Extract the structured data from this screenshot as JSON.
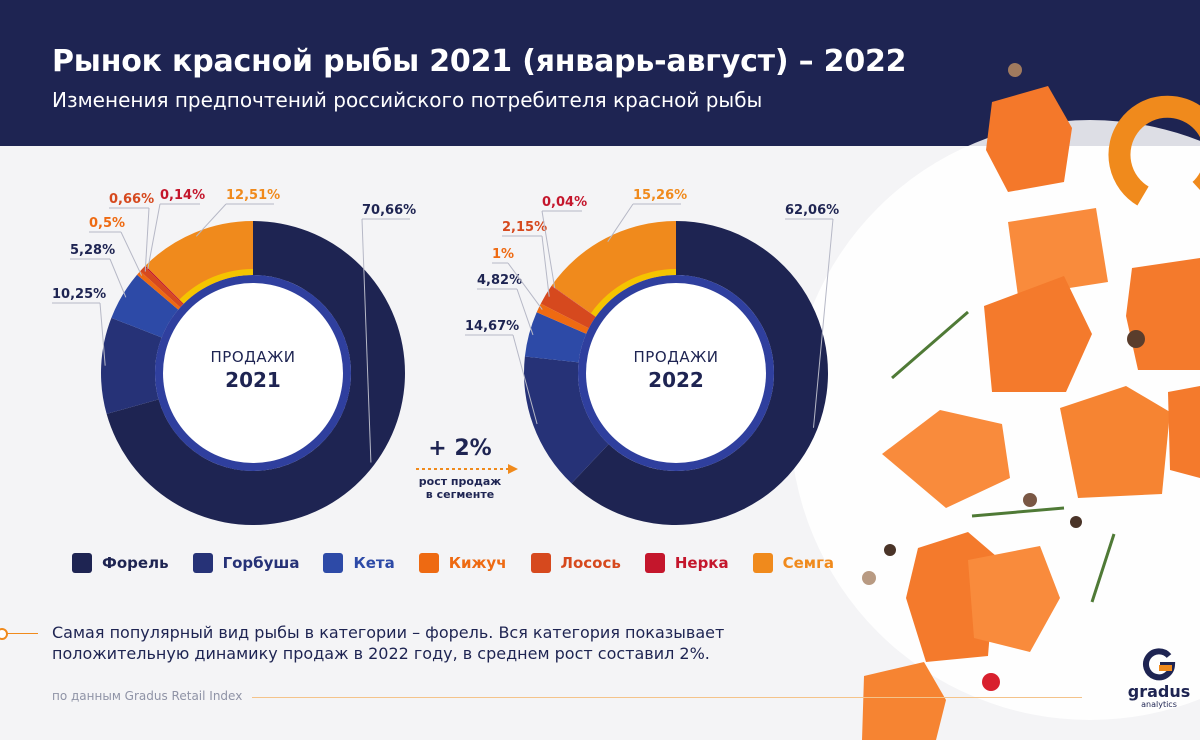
{
  "header": {
    "title": "Рынок красной рыбы 2021 (январь-август) – 2022",
    "subtitle": "Изменения предпочтений российского потребителя красной рыбы"
  },
  "colors": {
    "header_bg": "#1e2452",
    "accent": "#f08a1c"
  },
  "chart_data": [
    {
      "type": "pie",
      "title": "ПРОДАЖИ 2021",
      "center_label": "ПРОДАЖИ",
      "center_year": "2021",
      "categories": [
        "Форель",
        "Горбуша",
        "Кета",
        "Кижуч",
        "Лосось",
        "Нерка",
        "Семга"
      ],
      "values": [
        70.66,
        10.25,
        5.28,
        0.5,
        0.66,
        0.14,
        12.51
      ],
      "labels": [
        "70,66%",
        "10,25%",
        "5,28%",
        "0,5%",
        "0,66%",
        "0,14%",
        "12,51%"
      ]
    },
    {
      "type": "pie",
      "title": "ПРОДАЖИ 2022",
      "center_label": "ПРОДАЖИ",
      "center_year": "2022",
      "categories": [
        "Форель",
        "Горбуша",
        "Кета",
        "Кижуч",
        "Лосось",
        "Нерка",
        "Семга"
      ],
      "values": [
        62.06,
        14.67,
        4.82,
        1,
        2.15,
        0.04,
        15.26
      ],
      "labels": [
        "62,06%",
        "14,67%",
        "4,82%",
        "1%",
        "2,15%",
        "0,04%",
        "15,26%"
      ]
    }
  ],
  "growth": {
    "value": "+ 2%",
    "text": "рост продаж в сегменте"
  },
  "legend": {
    "items": [
      {
        "label": "Форель",
        "color": "#1e2452"
      },
      {
        "label": "Горбуша",
        "color": "#263277"
      },
      {
        "label": "Кета",
        "color": "#2d4aa7"
      },
      {
        "label": "Кижуч",
        "color": "#ee6a12"
      },
      {
        "label": "Лосось",
        "color": "#d6491e"
      },
      {
        "label": "Нерка",
        "color": "#c4162c"
      },
      {
        "label": "Семга",
        "color": "#f08a1c"
      }
    ]
  },
  "note": "Самая популярный вид рыбы в категории – форель. Вся категория показывает положительную динамику продаж в 2022 году, в среднем рост составил 2%.",
  "source": "по данным Gradus Retail Index",
  "brand": {
    "name": "gradus",
    "sub": "analytics"
  }
}
